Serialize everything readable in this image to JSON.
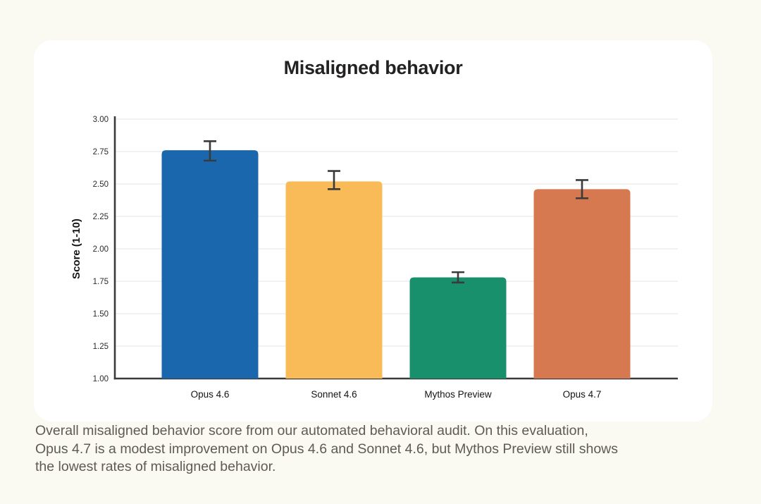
{
  "colors": {
    "page_background": "#faf9f2",
    "card_background": "#ffffff",
    "title_text": "#232122",
    "caption_text": "#5e5b54",
    "axis": "#3a3a3a",
    "grid": "#ebebeb",
    "tick_label": "#2b2b2b",
    "category_label": "#141414"
  },
  "chart_data": {
    "type": "bar",
    "title": "Misaligned behavior",
    "xlabel": "",
    "ylabel": "Score (1-10)",
    "categories": [
      "Opus 4.6",
      "Sonnet 4.6",
      "Mythos Preview",
      "Opus 4.7"
    ],
    "values": [
      2.76,
      2.52,
      1.78,
      2.46
    ],
    "error_low": [
      2.68,
      2.46,
      1.74,
      2.39
    ],
    "error_high": [
      2.83,
      2.6,
      1.82,
      2.53
    ],
    "bar_colors": [
      "#1b67ad",
      "#f9bb57",
      "#17906b",
      "#d67950"
    ],
    "ylim": [
      1.0,
      3.0
    ],
    "ytick_step": 0.25,
    "ytick_labels": [
      "1.00",
      "1.25",
      "1.50",
      "1.75",
      "2.00",
      "2.25",
      "2.50",
      "2.75",
      "3.00"
    ],
    "grid": true,
    "legend": false,
    "error_bars": true
  },
  "caption": {
    "text": "Overall misaligned behavior score from our automated behavioral audit. On this evaluation,\nOpus 4.7 is a modest improvement on Opus 4.6 and Sonnet 4.6, but Mythos Preview still shows\nthe lowest rates of misaligned behavior."
  }
}
